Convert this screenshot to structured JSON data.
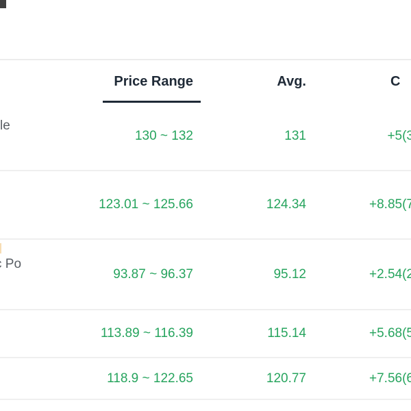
{
  "table": {
    "headers": {
      "name": "",
      "price_range": "Price Range",
      "avg": "Avg.",
      "change_visible": "C"
    },
    "rows": [
      {
        "name_fragment": "le",
        "price_range": "130 ~ 132",
        "avg": "131",
        "change_fragment": "+5(3"
      },
      {
        "name_fragment": "",
        "price_range": "123.01 ~ 125.66",
        "avg": "124.34",
        "change_fragment": "+8.85(7"
      },
      {
        "name_fragment": "c Po",
        "price_range": "93.87 ~ 96.37",
        "avg": "95.12",
        "change_fragment": "+2.54(2"
      },
      {
        "name_fragment": "",
        "price_range": "113.89 ~ 116.39",
        "avg": "115.14",
        "change_fragment": "+5.68(5"
      },
      {
        "name_fragment": "",
        "price_range": "118.9 ~ 122.65",
        "avg": "120.77",
        "change_fragment": "+7.56(6"
      }
    ],
    "colors": {
      "value_green": "#27a45e",
      "header_text": "#1f2a37",
      "name_text": "#585d63",
      "separator": "#efefef",
      "sort_indicator": "#1f2a37"
    }
  }
}
